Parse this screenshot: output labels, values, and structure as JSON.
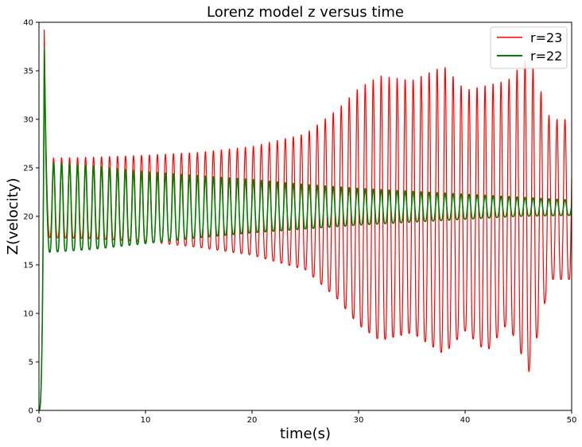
{
  "chart_data": {
    "type": "line",
    "title": "Lorenz model z versus time",
    "xlabel": "time(s)",
    "ylabel": "Z(velocity)",
    "xlim": [
      0,
      50
    ],
    "ylim": [
      0,
      40
    ],
    "x_ticks": [
      0,
      10,
      20,
      30,
      40,
      50
    ],
    "y_ticks": [
      0,
      5,
      10,
      15,
      20,
      25,
      30,
      35,
      40
    ],
    "grid": false,
    "legend_position": "top-right",
    "series": [
      {
        "name": "r=23",
        "color": "#ff0000",
        "initial_peak": 39.2,
        "oscillation_period": 0.75,
        "envelope": {
          "t": [
            1,
            5,
            10,
            15,
            20,
            25,
            28,
            30,
            32,
            35,
            38,
            40,
            42,
            44,
            46,
            48,
            50
          ],
          "max": [
            26,
            26.1,
            26.3,
            26.6,
            27.2,
            28.5,
            31,
            33.2,
            34.5,
            34,
            35.5,
            33,
            33.5,
            34,
            36.5,
            30,
            30
          ],
          "min": [
            17.8,
            17.7,
            17.4,
            16.8,
            16.0,
            14.5,
            11.5,
            8.8,
            7.2,
            8.0,
            5.8,
            8.2,
            6.0,
            9.0,
            4.0,
            13.5,
            13.5
          ]
        }
      },
      {
        "name": "r=22",
        "color": "#008000",
        "initial_peak": 37.3,
        "oscillation_period": 0.75,
        "envelope": {
          "t": [
            1,
            5,
            10,
            15,
            20,
            25,
            30,
            35,
            40,
            45,
            50
          ],
          "max": [
            25.5,
            25.2,
            24.6,
            24.2,
            23.8,
            23.3,
            22.9,
            22.6,
            22.3,
            22.0,
            21.7
          ],
          "min": [
            16.3,
            16.6,
            17.2,
            17.8,
            18.3,
            18.7,
            19.1,
            19.4,
            19.7,
            20.0,
            20.1
          ]
        }
      }
    ]
  }
}
